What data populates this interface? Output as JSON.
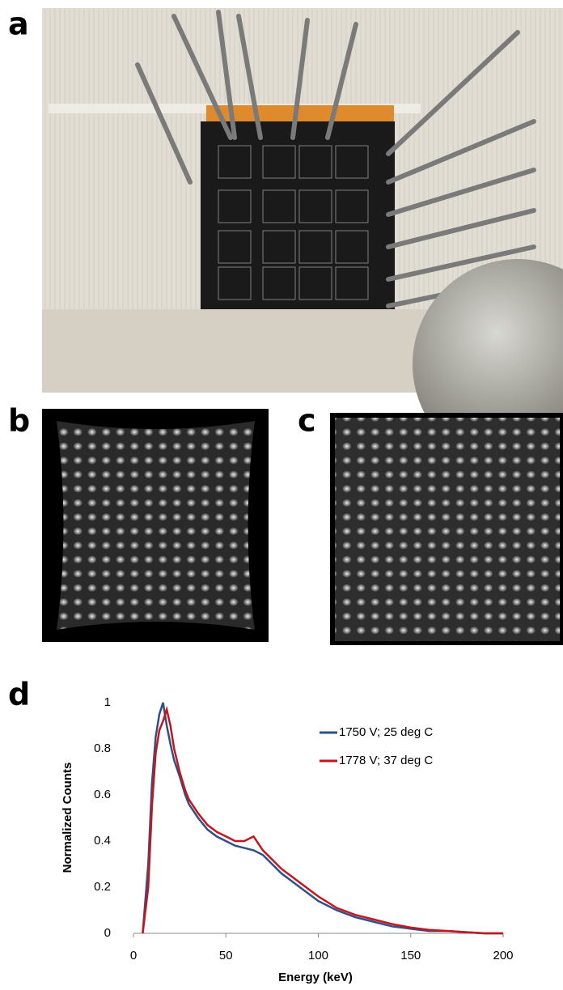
{
  "panel_labels": [
    "a",
    "b",
    "c",
    "d"
  ],
  "chart_data": {
    "type": "line",
    "x_label": "Energy (keV)",
    "y_label": "Normalized Counts",
    "x": [
      5,
      8,
      10,
      12,
      14,
      16,
      18,
      20,
      22,
      25,
      28,
      30,
      35,
      40,
      45,
      50,
      55,
      60,
      65,
      70,
      75,
      80,
      90,
      100,
      110,
      120,
      130,
      140,
      150,
      160,
      170,
      180,
      190,
      200
    ],
    "series": [
      {
        "name": "1750 V; 25 deg C",
        "color": "#2f4f8a",
        "values": [
          0,
          0.3,
          0.65,
          0.85,
          0.95,
          1.0,
          0.9,
          0.82,
          0.75,
          0.68,
          0.6,
          0.56,
          0.5,
          0.45,
          0.42,
          0.4,
          0.38,
          0.37,
          0.36,
          0.34,
          0.3,
          0.26,
          0.2,
          0.14,
          0.1,
          0.07,
          0.05,
          0.03,
          0.02,
          0.01,
          0.01,
          0.005,
          0,
          0
        ]
      },
      {
        "name": "1778 V; 37 deg C",
        "color": "#c4161c",
        "values": [
          0,
          0.2,
          0.55,
          0.78,
          0.88,
          0.92,
          0.97,
          0.9,
          0.8,
          0.7,
          0.62,
          0.58,
          0.52,
          0.47,
          0.44,
          0.42,
          0.4,
          0.4,
          0.42,
          0.36,
          0.32,
          0.28,
          0.22,
          0.16,
          0.11,
          0.08,
          0.06,
          0.04,
          0.025,
          0.015,
          0.01,
          0.005,
          0,
          0
        ]
      }
    ],
    "xlim": [
      0,
      200
    ],
    "xticks": [
      0,
      50,
      100,
      150,
      200
    ],
    "ylim": [
      0,
      1
    ],
    "yticks": [
      0,
      0.2,
      0.4,
      0.6,
      0.8,
      1
    ],
    "legend": "upper right"
  }
}
